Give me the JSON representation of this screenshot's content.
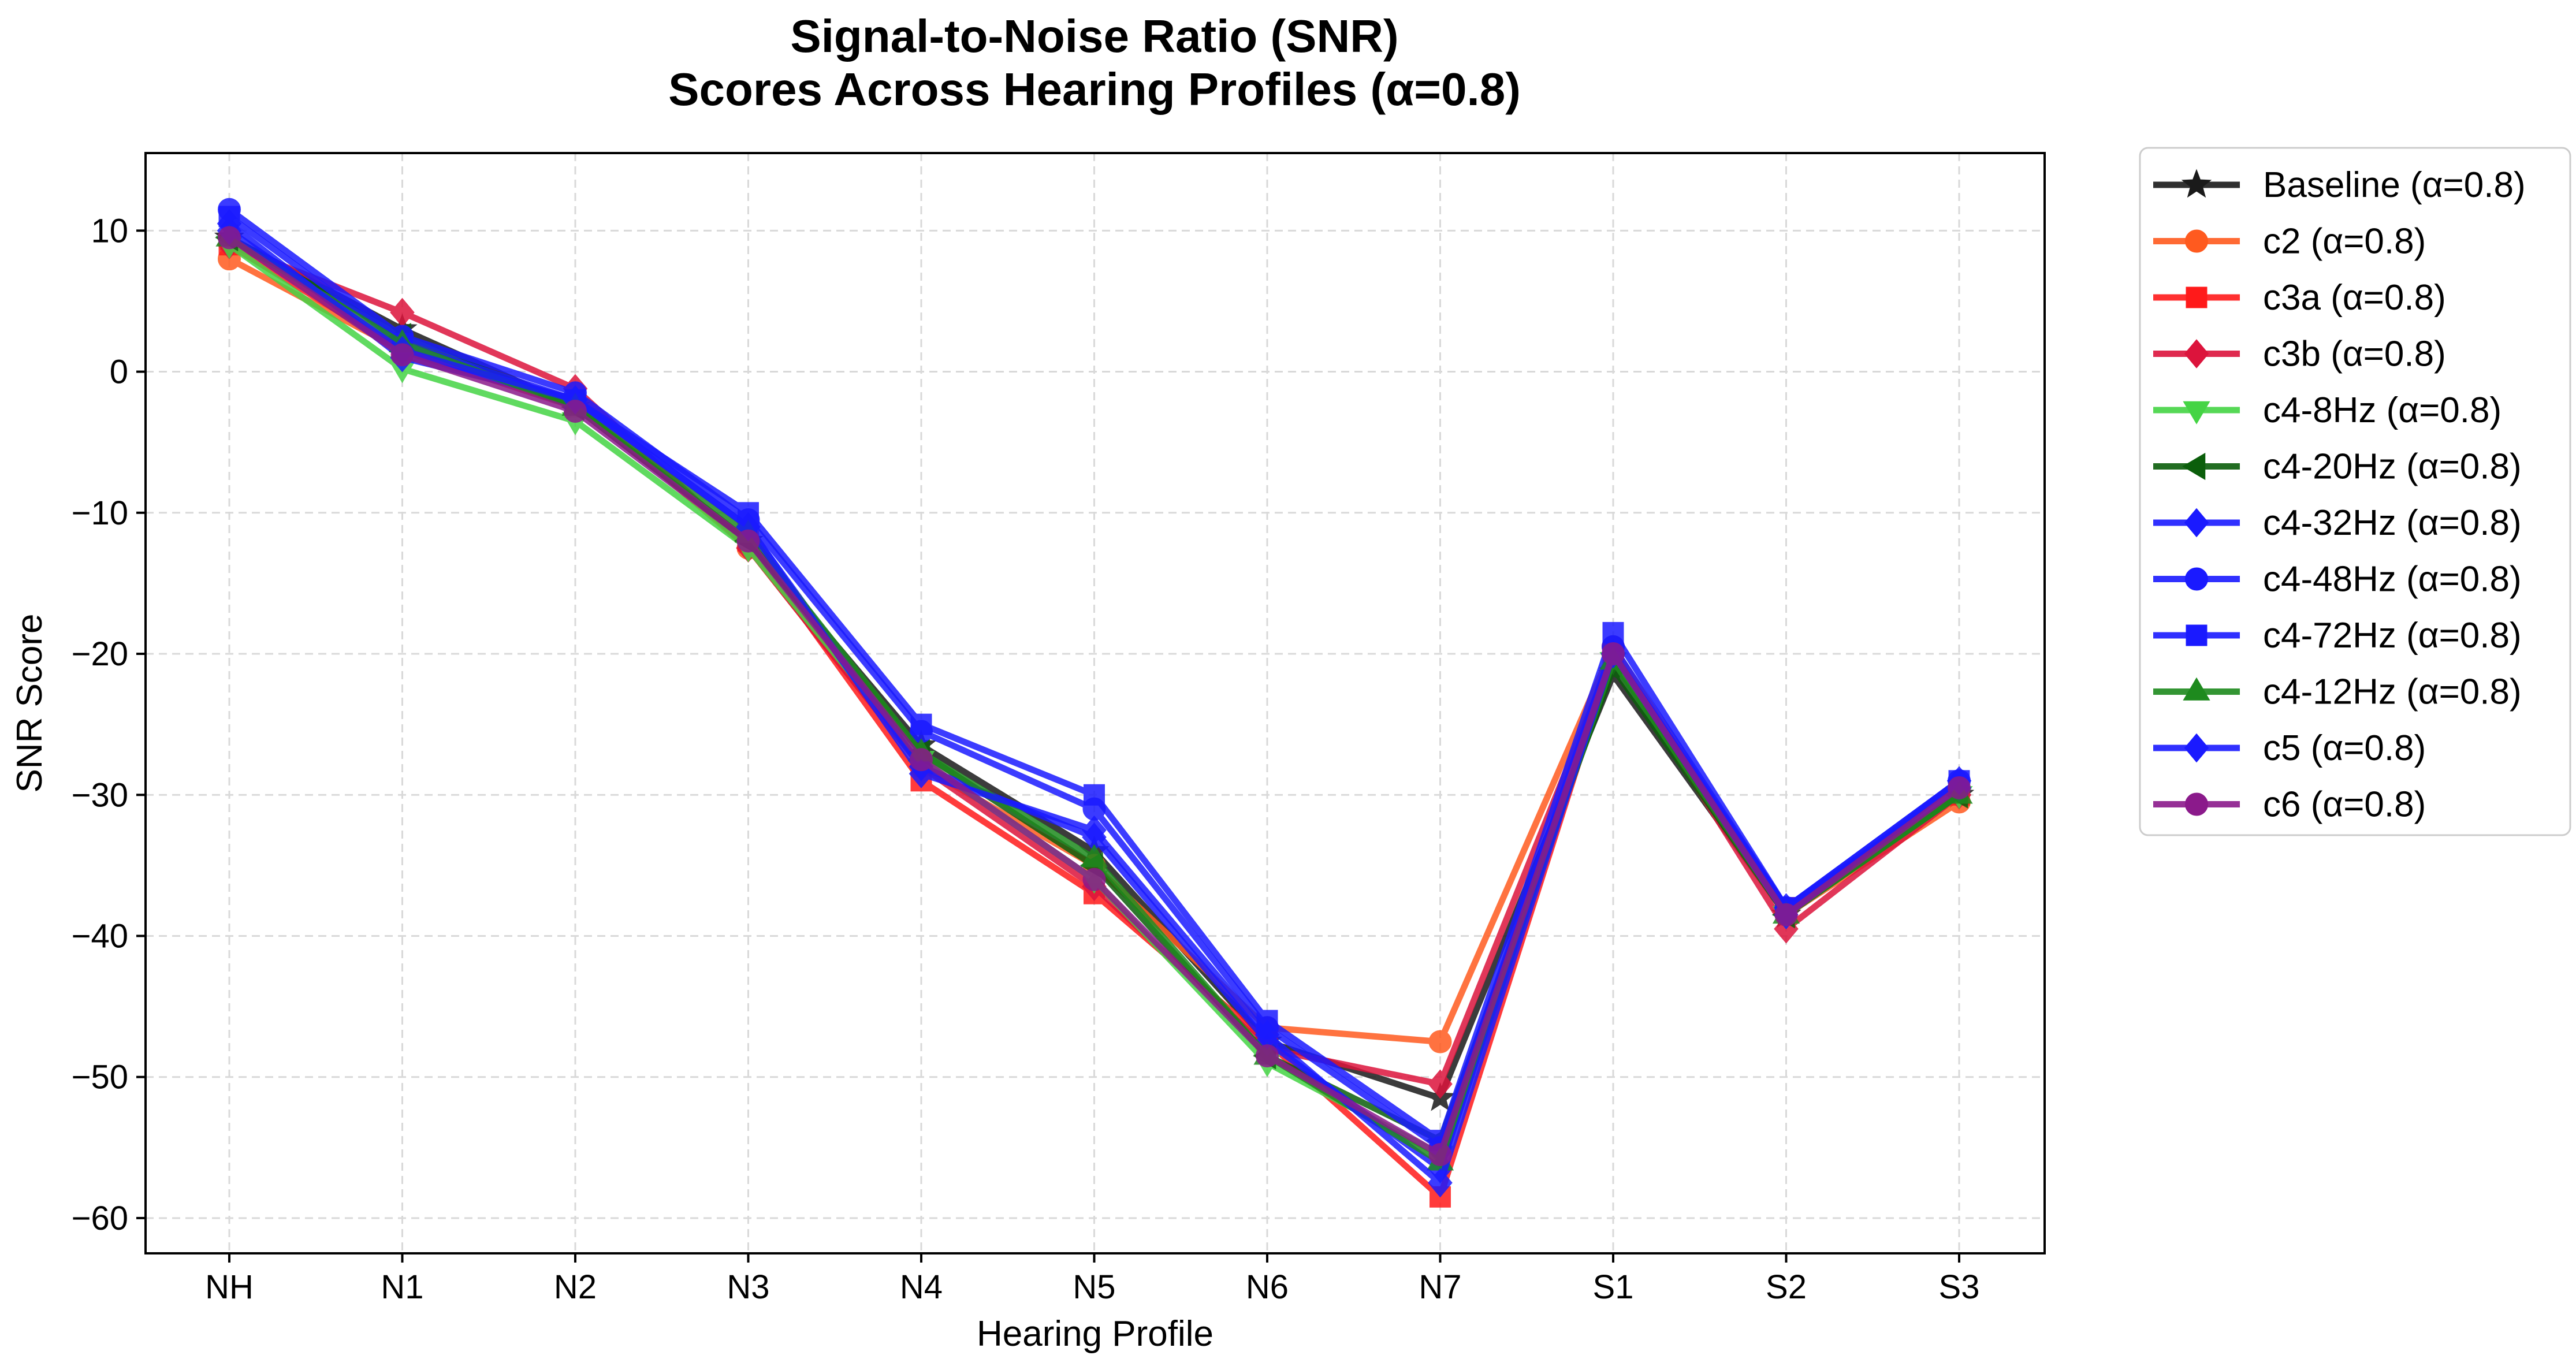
{
  "chart_data": {
    "type": "line",
    "title_lines": [
      "Signal-to-Noise Ratio (SNR)",
      "Scores Across Hearing Profiles (α=0.8)"
    ],
    "xlabel": "Hearing Profile",
    "ylabel": "SNR Score",
    "categories": [
      "NH",
      "N1",
      "N2",
      "N3",
      "N4",
      "N5",
      "N6",
      "N7",
      "S1",
      "S2",
      "S3"
    ],
    "ylim": [
      -62.5,
      15.5
    ],
    "yticks": [
      10,
      0,
      -10,
      -20,
      -30,
      -40,
      -50,
      -60
    ],
    "ytick_labels": [
      "10",
      "0",
      "−10",
      "−20",
      "−30",
      "−40",
      "−50",
      "−60"
    ],
    "grid": true,
    "legend_position": "outside right, top",
    "series": [
      {
        "name": "Baseline (α=0.8)",
        "color": "#1a1a1a",
        "marker": "star",
        "values": [
          9.5,
          3.0,
          -2.5,
          -12.0,
          -26.5,
          -34.0,
          -47.5,
          -51.5,
          -21.5,
          -38.5,
          -30.0
        ]
      },
      {
        "name": "c2 (α=0.8)",
        "color": "#ff5a1f",
        "marker": "circle",
        "values": [
          8.0,
          1.5,
          -2.0,
          -12.5,
          -28.0,
          -35.0,
          -46.5,
          -47.5,
          -19.5,
          -38.5,
          -30.5
        ]
      },
      {
        "name": "c3a (α=0.8)",
        "color": "#ff1a1a",
        "marker": "square",
        "values": [
          9.0,
          1.5,
          -2.5,
          -12.0,
          -29.0,
          -37.0,
          -47.5,
          -58.5,
          -20.0,
          -38.0,
          -30.0
        ]
      },
      {
        "name": "c3b (α=0.8)",
        "color": "#dc143c",
        "marker": "diamond",
        "values": [
          9.0,
          4.2,
          -1.2,
          -12.5,
          -28.0,
          -36.5,
          -48.0,
          -50.5,
          -20.0,
          -39.5,
          -30.0
        ]
      },
      {
        "name": "c4-8Hz (α=0.8)",
        "color": "#44d444",
        "marker": "triangle-down",
        "values": [
          9.0,
          0.2,
          -3.5,
          -12.5,
          -27.5,
          -36.0,
          -49.0,
          -55.5,
          -20.5,
          -38.5,
          -30.0
        ]
      },
      {
        "name": "c4-20Hz (α=0.8)",
        "color": "#0b5e0b",
        "marker": "triangle-left",
        "values": [
          9.5,
          2.5,
          -2.5,
          -12.0,
          -27.0,
          -35.0,
          -48.5,
          -54.5,
          -21.0,
          -38.5,
          -30.0
        ]
      },
      {
        "name": "c4-32Hz (α=0.8)",
        "color": "#1a1aff",
        "marker": "diamond",
        "values": [
          10.5,
          1.0,
          -2.0,
          -11.0,
          -28.0,
          -33.0,
          -47.5,
          -56.5,
          -20.0,
          -38.0,
          -29.5
        ]
      },
      {
        "name": "c4-48Hz (α=0.8)",
        "color": "#1a1aff",
        "marker": "circle",
        "values": [
          11.5,
          2.5,
          -1.5,
          -10.5,
          -25.5,
          -31.0,
          -46.5,
          -55.0,
          -19.5,
          -38.0,
          -29.0
        ]
      },
      {
        "name": "c4-72Hz (α=0.8)",
        "color": "#1a1aff",
        "marker": "square",
        "values": [
          11.0,
          2.0,
          -2.0,
          -10.0,
          -25.0,
          -30.0,
          -46.0,
          -54.5,
          -18.5,
          -38.0,
          -29.0
        ]
      },
      {
        "name": "c4-12Hz (α=0.8)",
        "color": "#1e8a1e",
        "marker": "triangle-up",
        "values": [
          9.5,
          2.0,
          -2.5,
          -11.5,
          -27.0,
          -34.5,
          -48.5,
          -56.0,
          -20.5,
          -38.5,
          -30.0
        ]
      },
      {
        "name": "c5 (α=0.8)",
        "color": "#1a1aff",
        "marker": "diamond",
        "values": [
          10.0,
          1.5,
          -2.0,
          -11.0,
          -28.5,
          -32.5,
          -47.0,
          -57.5,
          -20.0,
          -38.5,
          -29.0
        ]
      },
      {
        "name": "c6 (α=0.8)",
        "color": "#8b1a8b",
        "marker": "circle",
        "values": [
          9.5,
          1.2,
          -2.8,
          -12.0,
          -27.5,
          -36.0,
          -48.5,
          -55.5,
          -20.0,
          -38.5,
          -29.5
        ]
      }
    ]
  }
}
